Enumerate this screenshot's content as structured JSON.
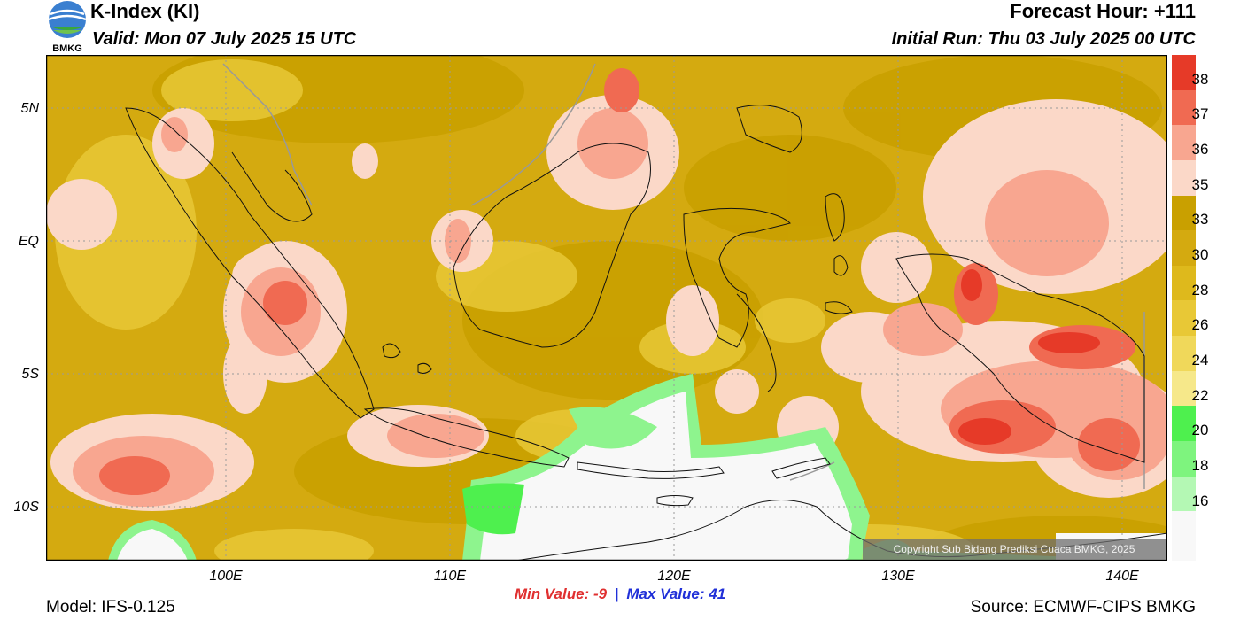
{
  "header": {
    "title": "K-Index (KI)",
    "valid": "Valid: Mon 07 July 2025 15 UTC",
    "forecast_hour": "Forecast Hour: +111",
    "initial_run": "Initial Run: Thu 03 July 2025 00 UTC",
    "logo_text": "BMKG"
  },
  "axes": {
    "lat_labels": [
      "5N",
      "EQ",
      "5S",
      "10S"
    ],
    "lon_labels": [
      "100E",
      "110E",
      "120E",
      "130E",
      "140E"
    ]
  },
  "stats": {
    "min_label": "Min Value:",
    "min_value": "-9",
    "separator": "|",
    "max_label": "Max Value:",
    "max_value": "41"
  },
  "footer": {
    "model": "Model: IFS-0.125",
    "source": "Source: ECMWF-CIPS BMKG",
    "copyright": "Copyright Sub Bidang Prediksi Cuaca BMKG, 2025"
  },
  "colorbar": {
    "labels": [
      "38",
      "37",
      "36",
      "35",
      "33",
      "30",
      "28",
      "26",
      "24",
      "22",
      "20",
      "18",
      "16"
    ],
    "colors": [
      "#e63a28",
      "#f06a52",
      "#f8a690",
      "#fbd8c8",
      "#c9a000",
      "#d4aa10",
      "#deb91c",
      "#e8c836",
      "#f0d85a",
      "#f6e88a",
      "#4ef04e",
      "#7ef47e",
      "#b4f8b4"
    ]
  },
  "map": {
    "extent": {
      "lon_min": 92,
      "lon_max": 142,
      "lat_min": -12,
      "lat_max": 7
    },
    "colors": {
      "base": "#d4aa10",
      "dark": "#c9a000",
      "light": "#e8c836",
      "pink": "#fbd8c8",
      "salmon": "#f8a690",
      "red": "#f06a52",
      "deepred": "#e63a28",
      "green": "#4ef04e",
      "lightgreen": "#8ef48e",
      "white": "#f8f8f8",
      "coast": "#111111",
      "river": "#999999",
      "grid": "#9a9a9a"
    }
  }
}
